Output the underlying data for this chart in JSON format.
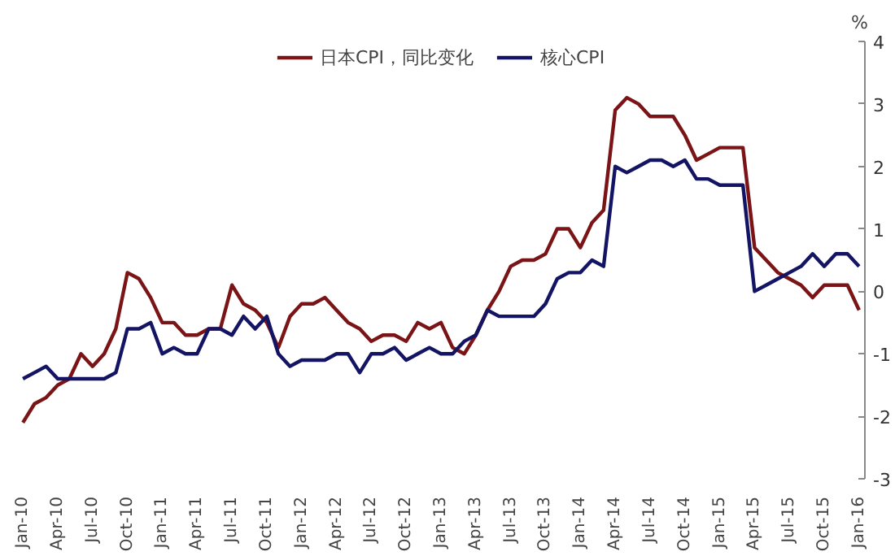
{
  "chart_data": {
    "type": "line",
    "ylabel": "%",
    "categories": [
      "Jan-10",
      null,
      null,
      "Apr-10",
      null,
      null,
      "Jul-10",
      null,
      null,
      "Oct-10",
      null,
      null,
      "Jan-11",
      null,
      null,
      "Apr-11",
      null,
      null,
      "Jul-11",
      null,
      null,
      "Oct-11",
      null,
      null,
      "Jan-12",
      null,
      null,
      "Apr-12",
      null,
      null,
      "Jul-12",
      null,
      null,
      "Oct-12",
      null,
      null,
      "Jan-13",
      null,
      null,
      "Apr-13",
      null,
      null,
      "Jul-13",
      null,
      null,
      "Oct-13",
      null,
      null,
      "Jan-14",
      null,
      null,
      "Apr-14",
      null,
      null,
      "Jul-14",
      null,
      null,
      "Oct-14",
      null,
      null,
      "Jan-15",
      null,
      null,
      "Apr-15",
      null,
      null,
      "Jul-15",
      null,
      null,
      "Oct-15",
      null,
      null,
      "Jan-16"
    ],
    "series": [
      {
        "name": "日本CPI，同比变化",
        "color": "#7b1416",
        "values": [
          -2.1,
          -1.8,
          -1.7,
          -1.5,
          -1.4,
          -1.0,
          -1.2,
          -1.0,
          -0.6,
          0.3,
          0.2,
          -0.1,
          -0.5,
          -0.5,
          -0.7,
          -0.7,
          -0.6,
          -0.6,
          0.1,
          -0.2,
          -0.3,
          -0.5,
          -0.9,
          -0.4,
          -0.2,
          -0.2,
          -0.1,
          -0.3,
          -0.5,
          -0.6,
          -0.8,
          -0.7,
          -0.7,
          -0.8,
          -0.5,
          -0.6,
          -0.5,
          -0.9,
          -1.0,
          -0.7,
          -0.3,
          0.0,
          0.4,
          0.5,
          0.5,
          0.6,
          1.0,
          1.0,
          0.7,
          1.1,
          1.3,
          2.9,
          3.1,
          3.0,
          2.8,
          2.8,
          2.8,
          2.5,
          2.1,
          2.2,
          2.3,
          2.3,
          2.3,
          0.7,
          0.5,
          0.3,
          0.2,
          0.1,
          -0.1,
          0.1,
          0.1,
          0.1,
          -0.3
        ]
      },
      {
        "name": "核心CPI",
        "color": "#141464",
        "values": [
          -1.4,
          -1.3,
          -1.2,
          -1.4,
          -1.4,
          -1.4,
          -1.4,
          -1.4,
          -1.3,
          -0.6,
          -0.6,
          -0.5,
          -1.0,
          -0.9,
          -1.0,
          -1.0,
          -0.6,
          -0.6,
          -0.7,
          -0.4,
          -0.6,
          -0.4,
          -1.0,
          -1.2,
          -1.1,
          -1.1,
          -1.1,
          -1.0,
          -1.0,
          -1.3,
          -1.0,
          -1.0,
          -0.9,
          -1.1,
          -1.0,
          -0.9,
          -1.0,
          -1.0,
          -0.8,
          -0.7,
          -0.3,
          -0.4,
          -0.4,
          -0.4,
          -0.4,
          -0.2,
          0.2,
          0.3,
          0.3,
          0.5,
          0.4,
          2.0,
          1.9,
          2.0,
          2.1,
          2.1,
          2.0,
          2.1,
          1.8,
          1.8,
          1.7,
          1.7,
          1.7,
          0.0,
          0.1,
          0.2,
          0.3,
          0.4,
          0.6,
          0.4,
          0.6,
          0.6,
          0.4
        ]
      }
    ],
    "ylim": [
      -3,
      4
    ],
    "yticks": [
      -3,
      -2,
      -1,
      0,
      1,
      2,
      3,
      4
    ],
    "grid": false,
    "legend": "top",
    "marker": "none",
    "line_style": "solid"
  }
}
